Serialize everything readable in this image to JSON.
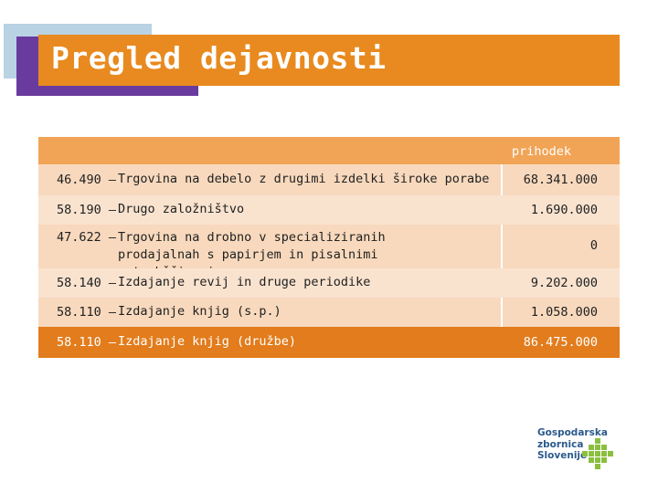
{
  "slide": {
    "title": "Pregled dejavnosti",
    "accent_colors": {
      "orange": "#e88a1f",
      "purple": "#6a3b9f",
      "light_blue": "#b9d2e4",
      "green": "#8bbf3f"
    }
  },
  "table": {
    "column_header": "prihodek",
    "rows": [
      {
        "code": "46.490 –",
        "name": "Trgovina na debelo z drugimi izdelki široke porabe",
        "value": "68.341.000"
      },
      {
        "code": "58.190 –",
        "name": "Drugo založništvo",
        "value": "1.690.000"
      },
      {
        "code": "47.622 –",
        "name": "Trgovina na drobno v specializiranih prodajalnah s papirjem in pisalnimi potrebščinami",
        "value": "0"
      },
      {
        "code": "58.140 –",
        "name": "Izdajanje revij in druge periodike",
        "value": "9.202.000"
      },
      {
        "code": "58.110 –",
        "name": "Izdajanje knjig (s.p.)",
        "value": "1.058.000"
      },
      {
        "code": "58.110 –",
        "name": "Izdajanje knjig (družbe)",
        "value": "86.475.000"
      }
    ]
  },
  "logo": {
    "line1": "Gospodarska",
    "line2": "zbornica",
    "line3": "Slovenije"
  }
}
